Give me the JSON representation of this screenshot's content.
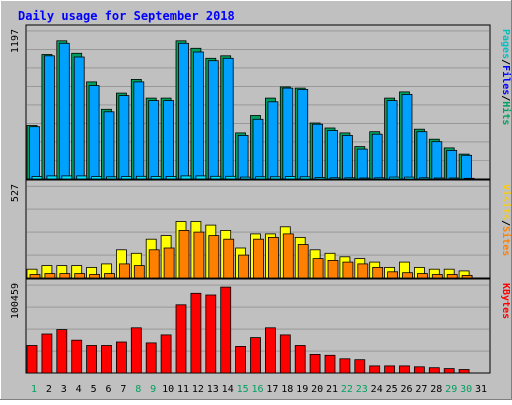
{
  "chart_data": [
    {
      "type": "bar",
      "title": "Daily usage for September 2018",
      "ymax_label": "1197",
      "right_labels": [
        {
          "text": "Pages",
          "color": "#00C0C0"
        },
        {
          "text": "Files",
          "color": "#0000FF"
        },
        {
          "text": "Hits",
          "color": "#00A060"
        }
      ],
      "categories": [
        "1",
        "2",
        "3",
        "4",
        "5",
        "6",
        "7",
        "8",
        "9",
        "10",
        "11",
        "12",
        "13",
        "14",
        "15",
        "16",
        "17",
        "18",
        "19",
        "20",
        "21",
        "22",
        "23",
        "24",
        "25",
        "26",
        "27",
        "28",
        "29",
        "30",
        "31"
      ],
      "series": [
        {
          "name": "Hits",
          "color": "#00A060",
          "values": [
            430,
            1000,
            1110,
            1010,
            780,
            560,
            690,
            800,
            650,
            650,
            1110,
            1050,
            970,
            990,
            370,
            510,
            650,
            740,
            730,
            450,
            410,
            370,
            260,
            380,
            650,
            700,
            400,
            320,
            250,
            200,
            0
          ]
        },
        {
          "name": "Files",
          "color": "#00A0FF",
          "values": [
            420,
            990,
            1090,
            980,
            750,
            540,
            670,
            780,
            630,
            630,
            1090,
            1020,
            950,
            970,
            350,
            480,
            620,
            730,
            720,
            440,
            390,
            350,
            240,
            360,
            630,
            680,
            380,
            300,
            230,
            190,
            0
          ]
        },
        {
          "name": "Pages",
          "color": "#00E0FF",
          "values": [
            20,
            25,
            25,
            25,
            20,
            18,
            20,
            22,
            20,
            20,
            25,
            25,
            22,
            22,
            15,
            18,
            18,
            20,
            18,
            12,
            10,
            10,
            8,
            10,
            15,
            15,
            10,
            8,
            8,
            6,
            0
          ]
        }
      ],
      "ylim": [
        0,
        1197
      ]
    },
    {
      "type": "bar",
      "ymax_label": "527",
      "right_labels": [
        {
          "text": "Visits",
          "color": "#FFCC00"
        },
        {
          "text": "Sites",
          "color": "#FF8000"
        }
      ],
      "categories": [
        "1",
        "2",
        "3",
        "4",
        "5",
        "6",
        "7",
        "8",
        "9",
        "10",
        "11",
        "12",
        "13",
        "14",
        "15",
        "16",
        "17",
        "18",
        "19",
        "20",
        "21",
        "22",
        "23",
        "24",
        "25",
        "26",
        "27",
        "28",
        "29",
        "30",
        "31"
      ],
      "series": [
        {
          "name": "Visits",
          "color": "#FFFF00",
          "values": [
            50,
            70,
            70,
            70,
            60,
            80,
            160,
            140,
            220,
            240,
            320,
            320,
            300,
            270,
            170,
            250,
            250,
            290,
            230,
            160,
            140,
            120,
            110,
            90,
            60,
            90,
            60,
            50,
            50,
            40,
            0
          ]
        },
        {
          "name": "Sites",
          "color": "#FF8000",
          "values": [
            20,
            25,
            25,
            25,
            20,
            25,
            80,
            70,
            160,
            170,
            270,
            260,
            240,
            220,
            130,
            220,
            230,
            250,
            190,
            110,
            100,
            90,
            80,
            60,
            35,
            30,
            25,
            20,
            20,
            15,
            0
          ]
        }
      ],
      "ylim": [
        0,
        527
      ]
    },
    {
      "type": "bar",
      "ymax_label": "100459",
      "right_labels": [
        {
          "text": "KBytes",
          "color": "#FF0000"
        }
      ],
      "categories": [
        "1",
        "2",
        "3",
        "4",
        "5",
        "6",
        "7",
        "8",
        "9",
        "10",
        "11",
        "12",
        "13",
        "14",
        "15",
        "16",
        "17",
        "18",
        "19",
        "20",
        "21",
        "22",
        "23",
        "24",
        "25",
        "26",
        "27",
        "28",
        "29",
        "30",
        "31"
      ],
      "series": [
        {
          "name": "KBytes",
          "color": "#FF0000",
          "values": [
            31000,
            44000,
            49000,
            37000,
            31000,
            31000,
            35000,
            51000,
            34000,
            43000,
            77000,
            90000,
            88000,
            97000,
            30000,
            40000,
            51000,
            43000,
            31000,
            21000,
            20000,
            16000,
            15000,
            8000,
            8000,
            8000,
            7000,
            6000,
            5000,
            4000,
            0
          ]
        }
      ],
      "ylim": [
        0,
        100459
      ]
    }
  ],
  "weekend_days": [
    1,
    8,
    9,
    15,
    16,
    22,
    23,
    29,
    30
  ],
  "label_colors": {
    "weekday": "#000000",
    "weekend": "#00A060"
  }
}
